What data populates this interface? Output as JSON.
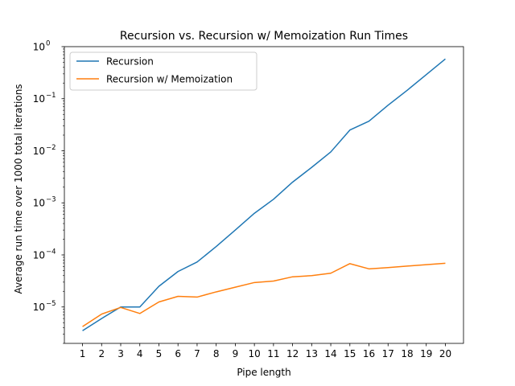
{
  "chart_data": {
    "type": "line",
    "title": "Recursion vs. Recursion w/ Memoization Run Times",
    "xlabel": "Pipe length",
    "ylabel": "Average run time over 1000 total iterations",
    "yscale": "log",
    "xlim": [
      0.05,
      20.95
    ],
    "ylim": [
      2e-06,
      1.0
    ],
    "x": [
      1,
      2,
      3,
      4,
      5,
      6,
      7,
      8,
      9,
      10,
      11,
      12,
      13,
      14,
      15,
      16,
      17,
      18,
      19,
      20
    ],
    "xticks": [
      "1",
      "2",
      "3",
      "4",
      "5",
      "6",
      "7",
      "8",
      "9",
      "10",
      "11",
      "12",
      "13",
      "14",
      "15",
      "16",
      "17",
      "18",
      "19",
      "20"
    ],
    "yticks": [
      {
        "base": "10",
        "exp": "0",
        "value": 1
      },
      {
        "base": "10",
        "exp": "−1",
        "value": 0.1
      },
      {
        "base": "10",
        "exp": "−2",
        "value": 0.01
      },
      {
        "base": "10",
        "exp": "−3",
        "value": 0.001
      },
      {
        "base": "10",
        "exp": "−4",
        "value": 0.0001
      },
      {
        "base": "10",
        "exp": "−5",
        "value": 1e-05
      }
    ],
    "grid": false,
    "legend_position": "top-left",
    "series": [
      {
        "name": "Recursion",
        "color": "#1f77b4",
        "values": [
          3.5e-06,
          6e-06,
          1e-05,
          1e-05,
          2.5e-05,
          4.8e-05,
          7.3e-05,
          0.000145,
          0.0003,
          0.00063,
          0.00117,
          0.0025,
          0.0048,
          0.0095,
          0.025,
          0.037,
          0.075,
          0.145,
          0.29,
          0.58
        ]
      },
      {
        "name": "Recursion w/ Memoization",
        "color": "#ff7f0e",
        "values": [
          4.2e-06,
          7.3e-06,
          9.8e-06,
          7.5e-06,
          1.25e-05,
          1.6e-05,
          1.55e-05,
          1.95e-05,
          2.4e-05,
          2.95e-05,
          3.15e-05,
          3.8e-05,
          4e-05,
          4.45e-05,
          6.8e-05,
          5.4e-05,
          5.7e-05,
          6.1e-05,
          6.5e-05,
          6.9e-05
        ]
      }
    ]
  }
}
